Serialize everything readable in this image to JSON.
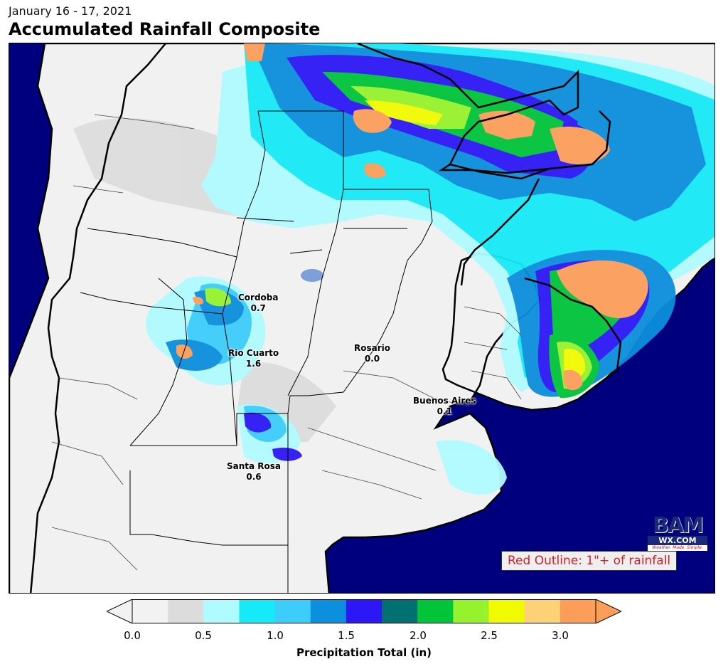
{
  "header": {
    "date": "January 16 - 17, 2021",
    "title": "Accumulated Rainfall Composite"
  },
  "colors": {
    "ocean": "#00007f",
    "land": "#f1f1f1",
    "bins": [
      "#f2f2f2",
      "#dcdcdc",
      "#b0fbff",
      "#16e9f7",
      "#3ccdfa",
      "#0c8fdd",
      "#2e17f6",
      "#007070",
      "#00c43a",
      "#96f22c",
      "#f1fb00",
      "#fdd277",
      "#fc9d5a"
    ]
  },
  "cities": [
    {
      "name": "Cordoba",
      "value": "0.7"
    },
    {
      "name": "Rio Cuarto",
      "value": "1.6"
    },
    {
      "name": "Rosario",
      "value": "0.0"
    },
    {
      "name": "Buenos Aires",
      "value": "0.1"
    },
    {
      "name": "Santa Rosa",
      "value": "0.6"
    }
  ],
  "note": "Red Outline: 1\"+ of rainfall",
  "logo": {
    "top": "BAM",
    "middle": "WX.COM",
    "tagline": "Weather. Made. Simple."
  },
  "colorbar": {
    "ticks": [
      "0.0",
      "0.5",
      "1.0",
      "1.5",
      "2.0",
      "2.5",
      "3.0"
    ],
    "label": "Precipitation Total (in)"
  }
}
